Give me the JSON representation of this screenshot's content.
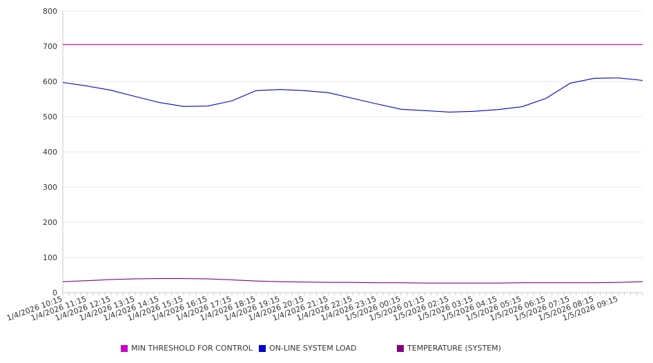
{
  "chart_data": {
    "type": "line",
    "title": "",
    "xlabel": "",
    "ylabel": "",
    "ylim": [
      0,
      800
    ],
    "yticks": [
      0,
      100,
      200,
      300,
      400,
      500,
      600,
      700,
      800
    ],
    "grid": true,
    "legend_position": "bottom",
    "x_tick_labels": [
      "1/4/2026 10:15",
      "1/4/2026 11:15",
      "1/4/2026 12:15",
      "1/4/2026 13:15",
      "1/4/2026 14:15",
      "1/4/2026 15:15",
      "1/4/2026 16:15",
      "1/4/2026 17:15",
      "1/4/2026 18:15",
      "1/4/2026 19:15",
      "1/4/2026 20:15",
      "1/4/2026 21:15",
      "1/4/2026 22:15",
      "1/4/2026 23:15",
      "1/5/2026 00:15",
      "1/5/2026 01:15",
      "1/5/2026 02:15",
      "1/5/2026 03:15",
      "1/5/2026 04:15",
      "1/5/2026 05:15",
      "1/5/2026 06:15",
      "1/5/2026 07:15",
      "1/5/2026 08:15",
      "1/5/2026 09:15"
    ],
    "x": [
      "1/4/2026 10:15",
      "1/4/2026 11:15",
      "1/4/2026 12:15",
      "1/4/2026 13:15",
      "1/4/2026 14:15",
      "1/4/2026 15:15",
      "1/4/2026 16:15",
      "1/4/2026 17:15",
      "1/4/2026 18:15",
      "1/4/2026 19:15",
      "1/4/2026 20:15",
      "1/4/2026 21:15",
      "1/4/2026 22:15",
      "1/4/2026 23:15",
      "1/5/2026 00:15",
      "1/5/2026 01:15",
      "1/5/2026 02:15",
      "1/5/2026 03:15",
      "1/5/2026 04:15",
      "1/5/2026 05:15",
      "1/5/2026 06:15",
      "1/5/2026 07:15",
      "1/5/2026 08:15",
      "1/5/2026 09:15",
      "1/5/2026 10:00"
    ],
    "series": [
      {
        "name": "MIN THRESHOLD FOR CONTROL",
        "color": "#cc00cc",
        "values": [
          705,
          705,
          705,
          705,
          705,
          705,
          705,
          705,
          705,
          705,
          705,
          705,
          705,
          705,
          705,
          705,
          705,
          705,
          705,
          705,
          705,
          705,
          705,
          705,
          705
        ]
      },
      {
        "name": "ON-LINE SYSTEM LOAD",
        "color": "#0000cc",
        "values": [
          597,
          587,
          575,
          557,
          540,
          529,
          530,
          545,
          574,
          577,
          574,
          568,
          552,
          536,
          521,
          517,
          513,
          515,
          520,
          528,
          552,
          595,
          609,
          610,
          603
        ]
      },
      {
        "name": "TEMPERATURE (SYSTEM)",
        "color": "#800080",
        "values": [
          31,
          34,
          37,
          39,
          40,
          40,
          39,
          36,
          33,
          31,
          30,
          29,
          29,
          28,
          28,
          27,
          27,
          27,
          27,
          28,
          28,
          28,
          28,
          29,
          31
        ]
      }
    ]
  }
}
